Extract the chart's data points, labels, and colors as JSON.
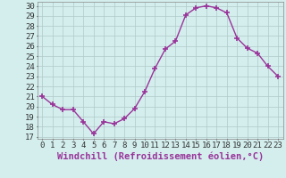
{
  "x": [
    0,
    1,
    2,
    3,
    4,
    5,
    6,
    7,
    8,
    9,
    10,
    11,
    12,
    13,
    14,
    15,
    16,
    17,
    18,
    19,
    20,
    21,
    22,
    23
  ],
  "y": [
    21.0,
    20.2,
    19.7,
    19.7,
    18.5,
    17.3,
    18.5,
    18.3,
    18.8,
    19.8,
    21.5,
    23.8,
    25.7,
    26.5,
    29.1,
    29.8,
    30.0,
    29.8,
    29.3,
    26.8,
    25.8,
    25.3,
    24.0,
    23.0
  ],
  "line_color": "#993399",
  "marker": "+",
  "marker_size": 4,
  "bg_color": "#d4eeee",
  "grid_color": "#b0c8c8",
  "xlabel": "Windchill (Refroidissement éolien,°C)",
  "xlabel_fontsize": 7.5,
  "yticks": [
    17,
    18,
    19,
    20,
    21,
    22,
    23,
    24,
    25,
    26,
    27,
    28,
    29,
    30
  ],
  "xtick_labels": [
    "0",
    "1",
    "2",
    "3",
    "4",
    "5",
    "6",
    "7",
    "8",
    "9",
    "10",
    "11",
    "12",
    "13",
    "14",
    "15",
    "16",
    "17",
    "18",
    "19",
    "20",
    "21",
    "22",
    "23"
  ],
  "ylim": [
    16.8,
    30.4
  ],
  "xlim": [
    -0.5,
    23.5
  ],
  "tick_fontsize": 6.5,
  "line_width": 1.0
}
